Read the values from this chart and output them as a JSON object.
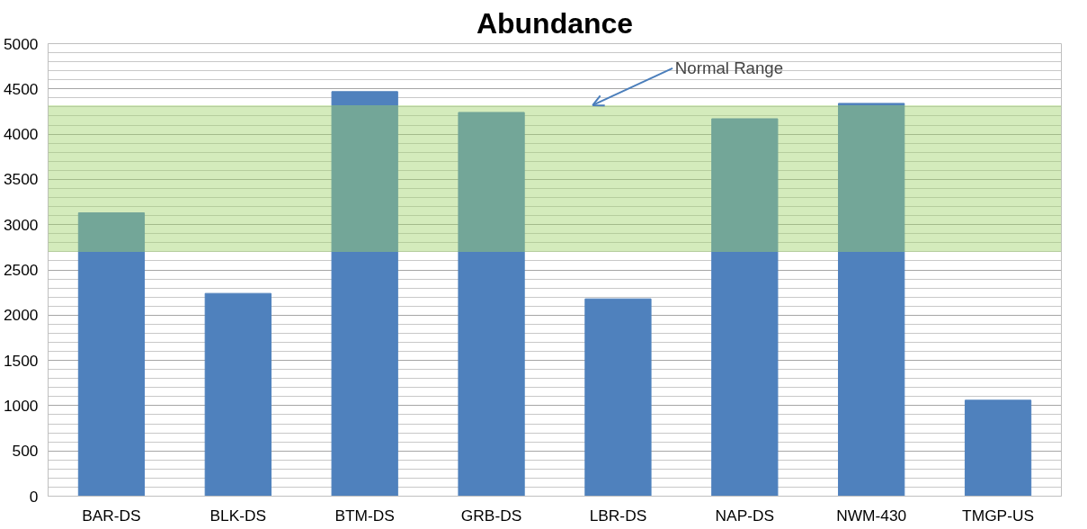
{
  "chart_data": {
    "type": "bar",
    "title": "Abundance",
    "categories": [
      "BAR-DS",
      "BLK-DS",
      "BTM-DS",
      "GRB-DS",
      "LBR-DS",
      "NAP-DS",
      "NWM-430",
      "TMGP-US"
    ],
    "values": [
      3130,
      2240,
      4470,
      4240,
      2180,
      4170,
      4340,
      1060
    ],
    "color": "#4f81bd",
    "ylim": [
      0,
      5000
    ],
    "yticks": [
      0,
      500,
      1000,
      1500,
      2000,
      2500,
      3000,
      3500,
      4000,
      4500,
      5000
    ],
    "grid": "y",
    "bands": [
      {
        "axis": "y",
        "from": 2700,
        "to": 4320,
        "label": "Normal Range",
        "color": "#9fd36a"
      }
    ]
  }
}
